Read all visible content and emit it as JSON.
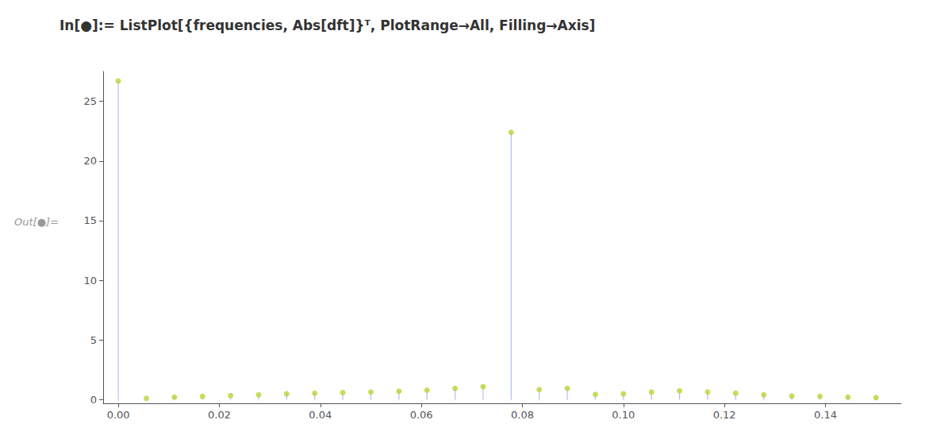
{
  "chart_data": {
    "type": "stem",
    "title": "In[●]:= ListPlot[{frequencies, Abs[dft]}ᵀ, PlotRange→All, Filling→Axis]",
    "annotations": [
      "Out[●]="
    ],
    "x": [
      0.0,
      0.00556,
      0.01111,
      0.01667,
      0.02222,
      0.02778,
      0.03333,
      0.03889,
      0.04444,
      0.05,
      0.05556,
      0.06111,
      0.06667,
      0.07222,
      0.07778,
      0.08333,
      0.08889,
      0.09444,
      0.1,
      0.10556,
      0.11111,
      0.11667,
      0.12222,
      0.12778,
      0.13333,
      0.13889,
      0.14444,
      0.15
    ],
    "values": [
      26.7,
      0.12,
      0.22,
      0.28,
      0.35,
      0.42,
      0.5,
      0.55,
      0.6,
      0.65,
      0.72,
      0.8,
      0.95,
      1.1,
      22.4,
      0.85,
      0.95,
      0.45,
      0.5,
      0.65,
      0.75,
      0.65,
      0.55,
      0.42,
      0.32,
      0.28,
      0.22,
      0.18
    ],
    "xlim": [
      -0.003,
      0.155
    ],
    "ylim": [
      -0.3,
      27.5
    ],
    "xticks": [
      {
        "value": 0.0,
        "label": "0.00"
      },
      0.02,
      0.04,
      0.06,
      0.08,
      {
        "value": 0.1,
        "label": "0.10"
      },
      0.12,
      0.14
    ],
    "yticks": [
      0,
      5,
      10,
      15,
      20,
      25
    ],
    "grid": false
  }
}
